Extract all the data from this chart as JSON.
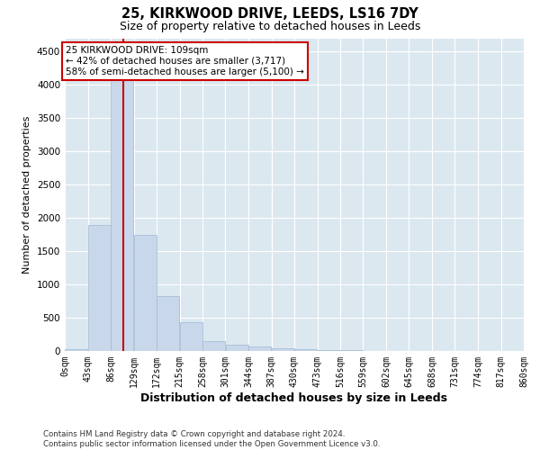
{
  "title": "25, KIRKWOOD DRIVE, LEEDS, LS16 7DY",
  "subtitle": "Size of property relative to detached houses in Leeds",
  "xlabel": "Distribution of detached houses by size in Leeds",
  "ylabel": "Number of detached properties",
  "bar_color": "#c8d8ea",
  "bar_edge_color": "#a0b8d0",
  "background_color": "#dce8f0",
  "grid_color": "#ffffff",
  "vline_value": 109,
  "vline_color": "#cc0000",
  "annotation_line1": "25 KIRKWOOD DRIVE: 109sqm",
  "annotation_line2": "← 42% of detached houses are smaller (3,717)",
  "annotation_line3": "58% of semi-detached houses are larger (5,100) →",
  "annotation_box_color": "#ffffff",
  "annotation_border_color": "#cc0000",
  "footer_text": "Contains HM Land Registry data © Crown copyright and database right 2024.\nContains public sector information licensed under the Open Government Licence v3.0.",
  "bin_edges": [
    0,
    43,
    86,
    129,
    172,
    215,
    258,
    301,
    344,
    387,
    430,
    473,
    516,
    559,
    602,
    645,
    688,
    731,
    774,
    817,
    860
  ],
  "bar_heights": [
    25,
    1900,
    4500,
    1750,
    820,
    430,
    150,
    90,
    65,
    40,
    25,
    18,
    8,
    4,
    3,
    2,
    1,
    1,
    1,
    0
  ],
  "ylim": [
    0,
    4700
  ],
  "yticks": [
    0,
    500,
    1000,
    1500,
    2000,
    2500,
    3000,
    3500,
    4000,
    4500
  ],
  "title_fontsize": 10.5,
  "subtitle_fontsize": 9,
  "tick_label_fontsize": 7,
  "ylabel_fontsize": 8,
  "xlabel_fontsize": 9
}
